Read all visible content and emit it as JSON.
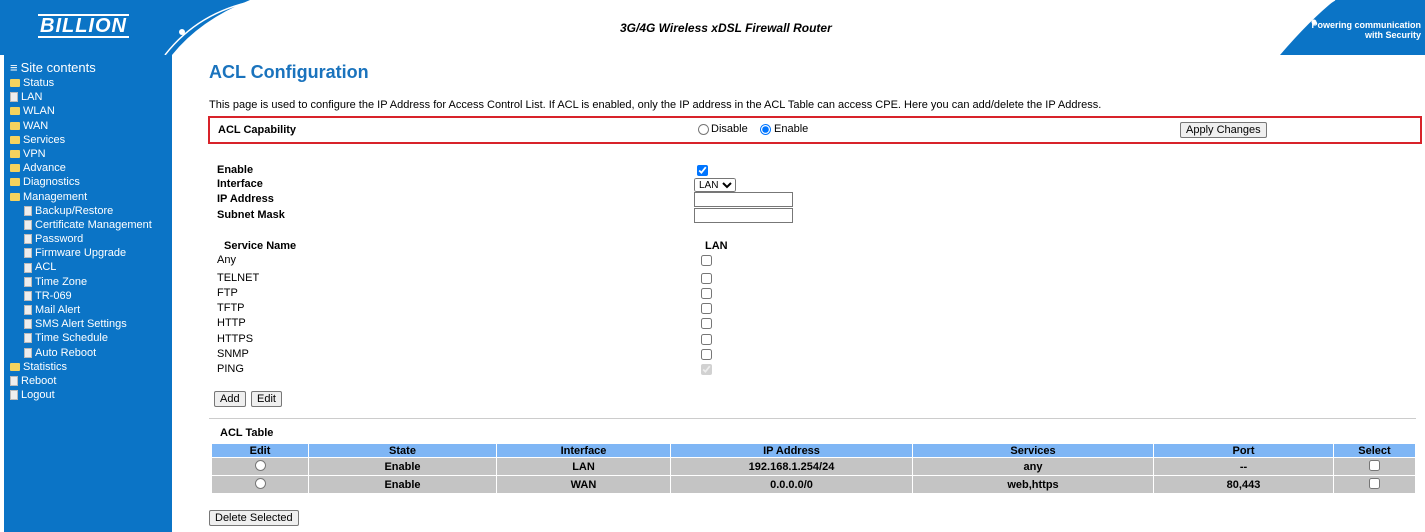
{
  "header": {
    "brand": "BILLION",
    "product": "3G/4G Wireless xDSL Firewall Router",
    "tagline": "Powering communication with Security"
  },
  "sidebar": {
    "root": "Site contents",
    "items": [
      {
        "label": "Status",
        "icon": "folder-icon"
      },
      {
        "label": "LAN",
        "icon": "page-icon"
      },
      {
        "label": "WLAN",
        "icon": "folder-icon"
      },
      {
        "label": "WAN",
        "icon": "folder-icon"
      },
      {
        "label": "Services",
        "icon": "folder-icon"
      },
      {
        "label": "VPN",
        "icon": "folder-icon"
      },
      {
        "label": "Advance",
        "icon": "folder-icon"
      },
      {
        "label": "Diagnostics",
        "icon": "folder-icon"
      },
      {
        "label": "Management",
        "icon": "folder-open-icon"
      }
    ],
    "management": [
      "Backup/Restore",
      "Certificate Management",
      "Password",
      "Firmware Upgrade",
      "ACL",
      "Time Zone",
      "TR-069",
      "Mail Alert",
      "SMS Alert Settings",
      "Time Schedule",
      "Auto Reboot"
    ],
    "bottom": [
      "Statistics",
      "Reboot",
      "Logout"
    ]
  },
  "main": {
    "title": "ACL Configuration",
    "description": "This page is used to configure the IP Address for Access Control List. If ACL is enabled, only the IP address in the ACL Table can access CPE. Here you can add/delete the IP Address.",
    "capability": {
      "label": "ACL Capability",
      "disable": "Disable",
      "enable": "Enable",
      "selected": "Enable",
      "apply": "Apply Changes"
    },
    "form": {
      "enable_label": "Enable",
      "enable_checked": true,
      "interface_label": "Interface",
      "interface_value": "LAN",
      "ip_label": "IP Address",
      "ip_value": "",
      "mask_label": "Subnet Mask",
      "mask_value": ""
    },
    "services": {
      "header": "Service Name",
      "col": "LAN",
      "items": [
        "Any",
        "TELNET",
        "FTP",
        "TFTP",
        "HTTP",
        "HTTPS",
        "SNMP",
        "PING"
      ]
    },
    "add": "Add",
    "edit": "Edit",
    "table": {
      "title": "ACL Table",
      "columns": [
        "Edit",
        "State",
        "Interface",
        "IP Address",
        "Services",
        "Port",
        "Select"
      ],
      "rows": [
        [
          "Enable",
          "LAN",
          "192.168.1.254/24",
          "any",
          "--"
        ],
        [
          "Enable",
          "WAN",
          "0.0.0.0/0",
          "web,https",
          "80,443"
        ]
      ]
    },
    "delete": "Delete Selected"
  }
}
